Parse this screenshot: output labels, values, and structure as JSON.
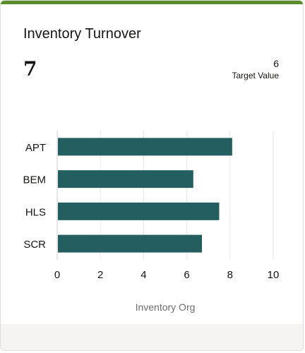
{
  "card": {
    "title": "Inventory Turnover",
    "metric_value": "7",
    "target_value": "6",
    "target_label": "Target Value"
  },
  "colors": {
    "accent": "#5b8c2a",
    "bar": "#245e60",
    "grid": "#e6e6e6",
    "axis_text": "#161513",
    "xlabel_text": "#6b6b6b"
  },
  "chart_data": {
    "type": "bar",
    "orientation": "horizontal",
    "categories": [
      "APT",
      "BEM",
      "HLS",
      "SCR"
    ],
    "values": [
      8.1,
      6.3,
      7.5,
      6.7
    ],
    "xlabel": "Inventory Org",
    "ylabel": "",
    "xlim": [
      0,
      10
    ],
    "xticks": [
      0,
      2,
      4,
      6,
      8,
      10
    ],
    "grid": true
  }
}
